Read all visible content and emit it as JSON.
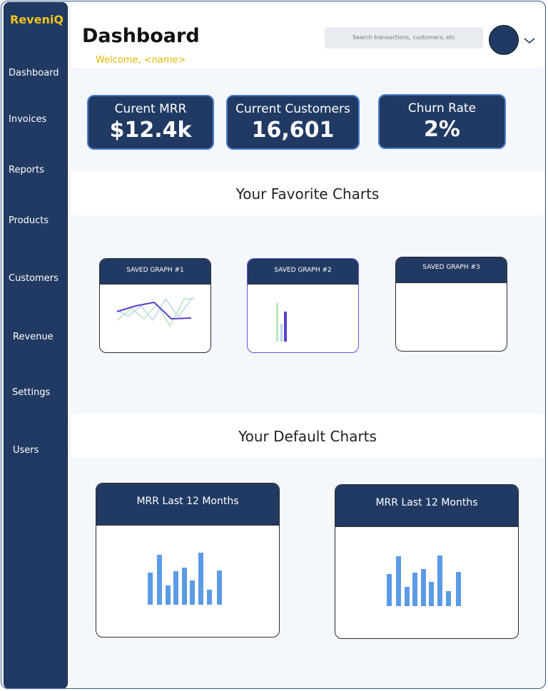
{
  "sidebar": {
    "brand": "ReveniQ",
    "nav": [
      "Dashboard",
      "Invoices",
      "Reports",
      "Products",
      "Customers",
      "Revenue",
      "Settings",
      "Users"
    ]
  },
  "header": {
    "title": "Dashboard",
    "welcome": "Welcome, <name>",
    "search_placeholder": "Search transactions, customers, etc"
  },
  "kpis": [
    {
      "label": "Curent MRR",
      "value": "$12.4k"
    },
    {
      "label": "Current Customers",
      "value": "16,601"
    },
    {
      "label": "Churn Rate",
      "value": "2%"
    }
  ],
  "favorites": {
    "title": "Your Favorite Charts",
    "cards": [
      "SAVED GRAPH #1",
      "SAVED GRAPH #2",
      "SAVED GRAPH #3"
    ]
  },
  "defaults": {
    "title": "Your Default Charts",
    "cards": [
      "MRR Last 12 Months",
      "MRR Last 12 Months"
    ]
  }
}
